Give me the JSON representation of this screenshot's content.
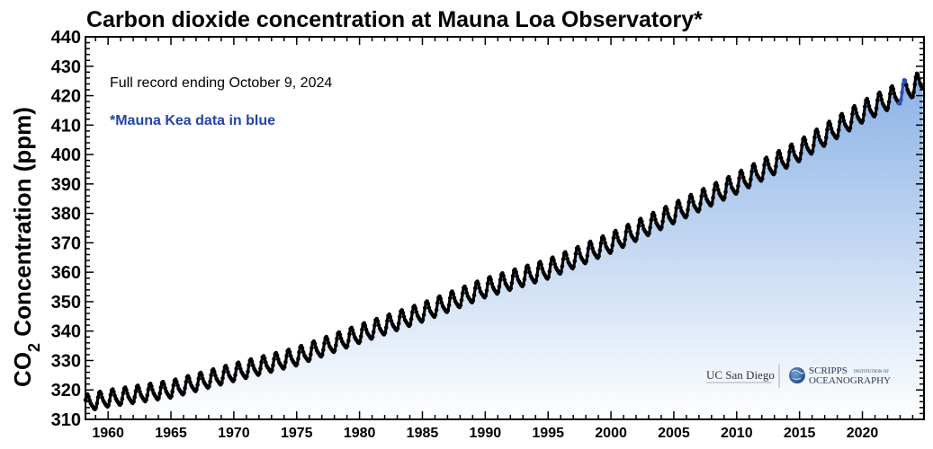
{
  "chart_data": {
    "type": "line",
    "title": "Carbon dioxide concentration at Mauna Loa Observatory*",
    "ylabel_main": "CO",
    "ylabel_sub": "2",
    "ylabel_rest": " Concentration (ppm)",
    "subtitle": "Full record ending October 9, 2024",
    "note": "*Mauna Kea data in blue",
    "xlim": [
      1958.2,
      2024.9
    ],
    "ylim": [
      310,
      440
    ],
    "x_ticks": [
      "1960",
      "1965",
      "1970",
      "1975",
      "1980",
      "1985",
      "1990",
      "1995",
      "2000",
      "2005",
      "2010",
      "2015",
      "2020"
    ],
    "y_ticks": [
      "310",
      "320",
      "330",
      "340",
      "350",
      "360",
      "370",
      "380",
      "390",
      "400",
      "410",
      "420",
      "430",
      "440"
    ],
    "grid": false,
    "trend_anchors": {
      "x": [
        1958.2,
        1960,
        1965,
        1970,
        1975,
        1980,
        1985,
        1990,
        1995,
        2000,
        2005,
        2010,
        2015,
        2020,
        2024.8
      ],
      "y": [
        315.3,
        316.9,
        320.0,
        325.7,
        331.1,
        338.8,
        346.1,
        354.4,
        360.8,
        369.7,
        379.8,
        389.9,
        401.0,
        414.2,
        424.5
      ]
    },
    "seasonal_amplitude_ppm": [
      2.6,
      3.4
    ],
    "series": [
      {
        "name": "Mauna Loa",
        "color": "#000000",
        "x_range": [
          1958.2,
          2022.9
        ]
      },
      {
        "name": "Mauna Kea",
        "color": "#2b4fb0",
        "x_range": [
          2022.9,
          2023.5
        ]
      },
      {
        "name": "Mauna Loa",
        "color": "#000000",
        "x_range": [
          2023.5,
          2024.8
        ]
      }
    ],
    "fill_gradient": {
      "top": "#8ab1e6",
      "bottom": "#ffffff"
    }
  },
  "logos": {
    "ucsd": "UC San Diego",
    "scripps": "SCRIPPS",
    "scripps_small": "INSTITUTION OF",
    "oceanography": "OCEANOGRAPHY"
  },
  "colors": {
    "note_blue": "#2343a8",
    "axis": "#000000"
  }
}
